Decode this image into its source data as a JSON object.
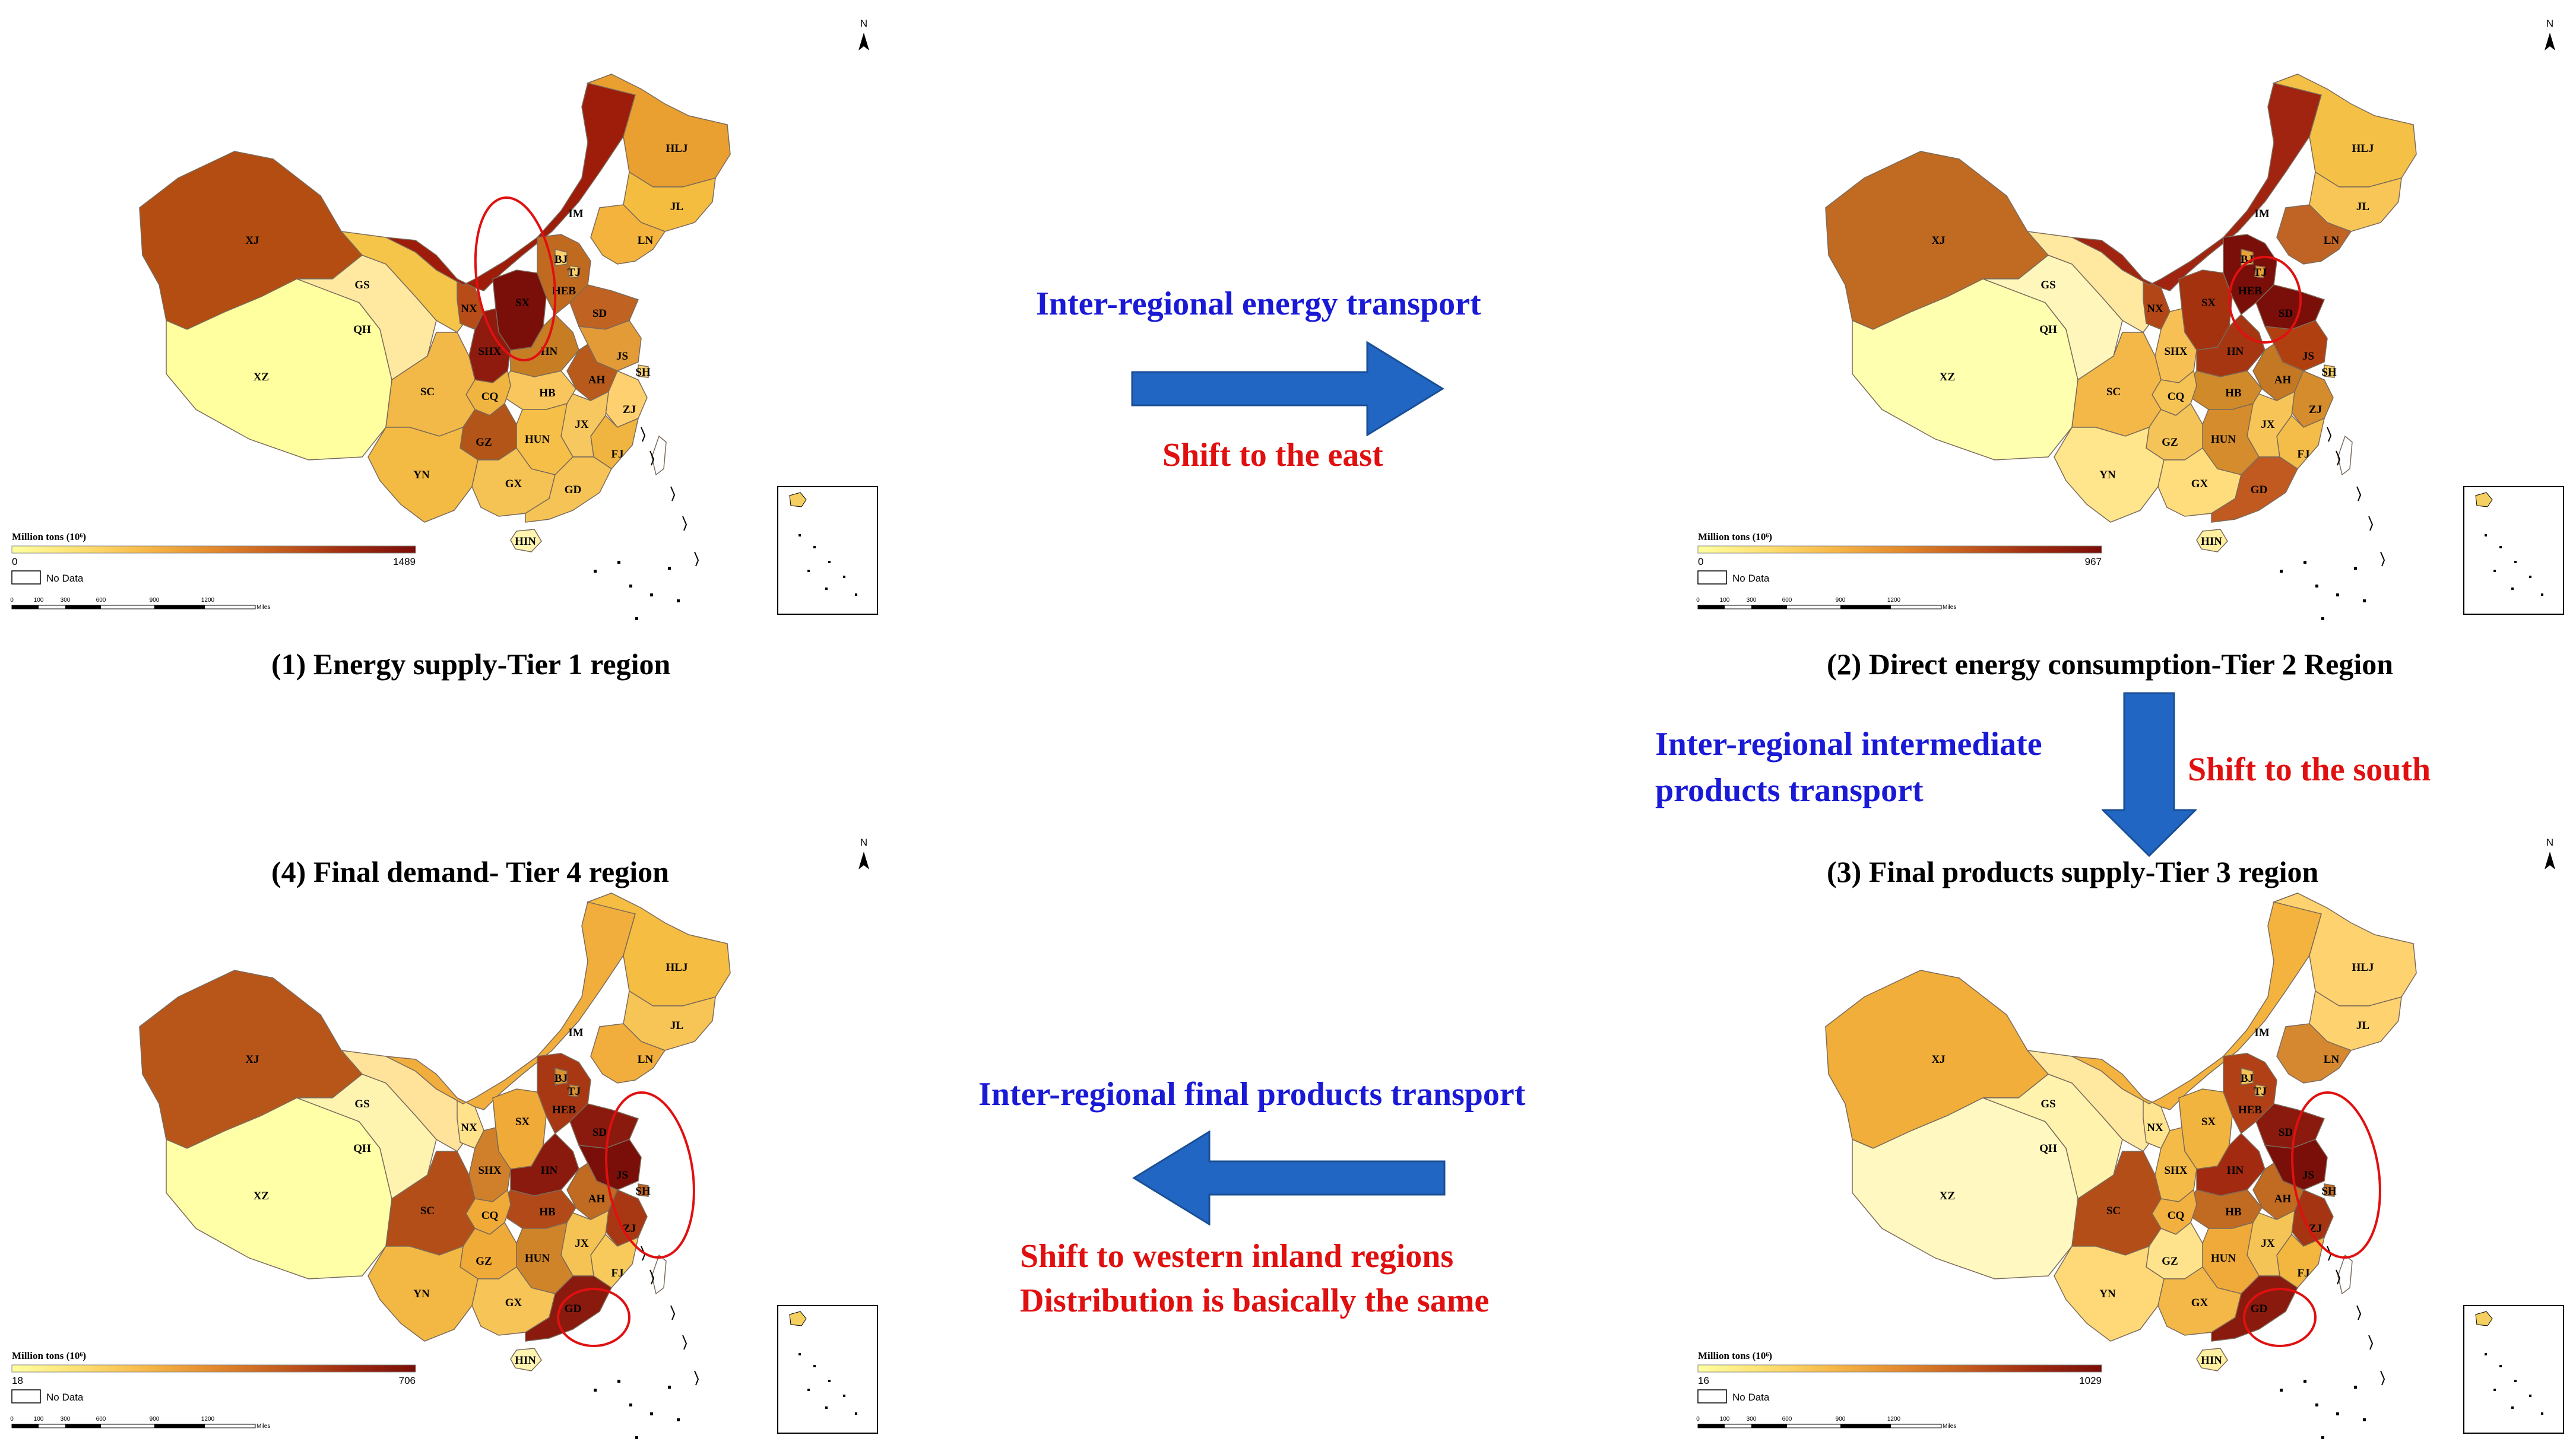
{
  "flows": {
    "energy": {
      "title": "Inter-regional energy transport",
      "shift": "Shift to the east"
    },
    "intermediate": {
      "title_line1": "Inter-regional intermediate",
      "title_line2": "products transport",
      "shift": "Shift to the south"
    },
    "final": {
      "title": "Inter-regional final products transport",
      "shift_line1": "Shift to western inland regions",
      "shift_line2": "Distribution is basically the same"
    }
  },
  "colors": {
    "flow_title": "#1a1ad6",
    "shift_text": "#e01010",
    "arrow": "#2166c2",
    "highlight_circle": "#e01010"
  },
  "legend": {
    "title": "Million tons (10⁶)",
    "no_data": "No Data",
    "scale_unit": "Miles",
    "scale_ticks": [
      "0",
      "100",
      "300",
      "600",
      "900",
      "1200"
    ]
  },
  "north_label": "N",
  "panels": [
    {
      "caption": "(1) Energy supply-Tier 1 region",
      "legend_min": "0",
      "legend_max": "1489",
      "colors": {
        "XJ": "#b34d12",
        "XZ": "#ffffa0",
        "QH": "#ffe8a0",
        "GS": "#f5c54a",
        "IM": "#9e1c0a",
        "HLJ": "#e9a030",
        "JL": "#f5bd40",
        "LN": "#f3b33c",
        "HEB": "#c06a20",
        "BJ": "#ffd270",
        "TJ": "#ffd270",
        "SD": "#c06222",
        "SX": "#7a0e08",
        "SHX": "#8f1a0e",
        "NX": "#b84c18",
        "HN": "#c67d24",
        "JS": "#e39b38",
        "SH": "#ffd070",
        "AH": "#b85a1c",
        "ZJ": "#ffd070",
        "FJ": "#f0b440",
        "JX": "#f8c860",
        "HUN": "#f5bf48",
        "HB": "#f8c65c",
        "CQ": "#f0b440",
        "SC": "#f2b848",
        "GZ": "#b35518",
        "YN": "#f3ba44",
        "GX": "#f5c254",
        "GD": "#f6c456",
        "HIN": "#fff5b0"
      },
      "circles": [
        {
          "region": "SX"
        }
      ]
    },
    {
      "caption": "(2) Direct energy consumption-Tier 2 Region",
      "legend_min": "0",
      "legend_max": "967",
      "colors": {
        "XJ": "#c06a22",
        "XZ": "#ffffb0",
        "QH": "#fff6bc",
        "GS": "#ffe8a0",
        "IM": "#a02410",
        "HLJ": "#f5c046",
        "JL": "#f7c656",
        "LN": "#c06426",
        "HEB": "#7a0e08",
        "BJ": "#e9a236",
        "TJ": "#e9a236",
        "SD": "#7a0e08",
        "SX": "#a4320e",
        "SHX": "#f6c054",
        "NX": "#b34616",
        "HN": "#a63612",
        "JS": "#b14010",
        "SH": "#f8cc60",
        "AH": "#c47824",
        "ZJ": "#d58c2c",
        "FJ": "#f4bc48",
        "JX": "#f7c458",
        "HUN": "#d58c2c",
        "HB": "#d08a2a",
        "CQ": "#f5c254",
        "SC": "#f3b848",
        "GZ": "#f5c458",
        "YN": "#ffe58c",
        "GX": "#ffdd7c",
        "GD": "#c05a20",
        "HIN": "#fff0a0"
      },
      "circles": [
        {
          "region": "HEB"
        }
      ]
    },
    {
      "caption": "(3) Final products supply-Tier 3 region",
      "legend_min": "16",
      "legend_max": "1029",
      "colors": {
        "XJ": "#f1ae3a",
        "XZ": "#fff8c0",
        "QH": "#fff3ae",
        "GS": "#ffe8a0",
        "IM": "#f3b33e",
        "HLJ": "#ffd270",
        "JL": "#ffd270",
        "LN": "#d58830",
        "HEB": "#b14016",
        "BJ": "#f5c254",
        "TJ": "#f5c254",
        "SD": "#8a1a0e",
        "SX": "#f1b43e",
        "SHX": "#f4bb48",
        "NX": "#ffe590",
        "HN": "#a22a10",
        "JS": "#7a0e08",
        "SH": "#c06a22",
        "AH": "#c06a22",
        "ZJ": "#a43412",
        "FJ": "#f3b63f",
        "JX": "#f5c456",
        "HUN": "#f0aa3a",
        "HB": "#c06a22",
        "CQ": "#f2b040",
        "SC": "#b34e18",
        "GZ": "#ffe38c",
        "YN": "#ffd978",
        "GX": "#f3b848",
        "GD": "#8a1a0e",
        "HIN": "#fff0a0"
      },
      "circles": [
        {
          "region": "JS"
        },
        {
          "region": "GD"
        }
      ]
    },
    {
      "caption": "(4) Final demand- Tier 4 region",
      "legend_min": "18",
      "legend_max": "706",
      "colors": {
        "XJ": "#b8561a",
        "XZ": "#ffffa8",
        "QH": "#fff3b0",
        "GS": "#ffe39a",
        "IM": "#f1ae3c",
        "HLJ": "#f5bd42",
        "JL": "#f7c456",
        "LN": "#f1ae3c",
        "HEB": "#a83814",
        "BJ": "#d89234",
        "TJ": "#d89234",
        "SD": "#8a1a0e",
        "SX": "#f0aa38",
        "SHX": "#d0802a",
        "NX": "#ffe28a",
        "HN": "#8a1a0e",
        "JS": "#7a0e08",
        "SH": "#c06020",
        "AH": "#c06a22",
        "ZJ": "#a83814",
        "FJ": "#f8ca5c",
        "JX": "#f5c254",
        "HUN": "#d0842a",
        "HB": "#b14a18",
        "CQ": "#f0aa38",
        "SC": "#b34e18",
        "GZ": "#f0aa38",
        "YN": "#f3b844",
        "GX": "#f7c458",
        "GD": "#8a1a0e",
        "HIN": "#fff5b0"
      },
      "circles": [
        {
          "region": "JS"
        },
        {
          "region": "GD"
        }
      ]
    }
  ]
}
